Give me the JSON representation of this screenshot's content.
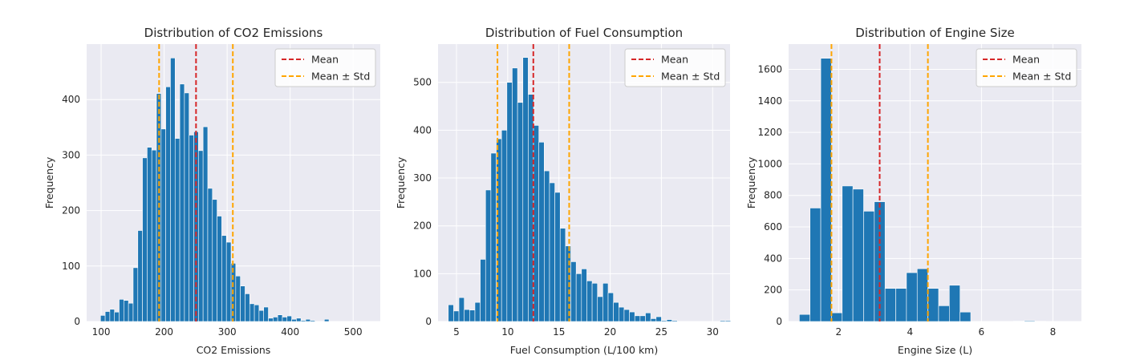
{
  "chart_data": [
    {
      "type": "bar",
      "title": "Distribution of CO2 Emissions",
      "xlabel": "CO2 Emissions",
      "ylabel": "Frequency",
      "xlim": [
        77,
        543
      ],
      "ylim": [
        0,
        500
      ],
      "xticks": [
        100,
        200,
        300,
        400,
        500
      ],
      "yticks": [
        0,
        100,
        200,
        300,
        400
      ],
      "bin_start": 99,
      "bin_width": 7.4,
      "values": [
        11,
        18,
        22,
        17,
        40,
        38,
        33,
        97,
        164,
        295,
        314,
        309,
        411,
        347,
        423,
        475,
        330,
        428,
        412,
        336,
        342,
        308,
        351,
        240,
        220,
        190,
        155,
        143,
        105,
        82,
        64,
        50,
        32,
        30,
        20,
        26,
        6,
        8,
        12,
        8,
        10,
        4,
        6,
        2,
        4,
        2,
        0,
        0,
        4
      ],
      "lines": [
        {
          "series": "mean",
          "x": 250.6
        },
        {
          "series": "std",
          "x": 192
        },
        {
          "series": "std",
          "x": 309
        }
      ],
      "legend": [
        "Mean",
        "Mean ± Std"
      ],
      "legend_position": "top-right",
      "grid": true
    },
    {
      "type": "bar",
      "title": "Distribution of Fuel Consumption",
      "xlabel": "Fuel Consumption (L/100 km)",
      "ylabel": "Frequency",
      "xlim": [
        3.2,
        31.7
      ],
      "ylim": [
        0,
        580
      ],
      "xticks": [
        5,
        10,
        15,
        20,
        25,
        30
      ],
      "yticks": [
        0,
        100,
        200,
        300,
        400,
        500
      ],
      "bin_start": 4.2,
      "bin_width": 0.52,
      "values": [
        35,
        22,
        50,
        25,
        24,
        40,
        130,
        275,
        352,
        382,
        400,
        500,
        530,
        458,
        552,
        475,
        410,
        375,
        315,
        290,
        270,
        195,
        158,
        125,
        100,
        110,
        85,
        80,
        52,
        80,
        60,
        40,
        30,
        25,
        20,
        12,
        12,
        18,
        6,
        10,
        2,
        4,
        2,
        0,
        0,
        0,
        0,
        0,
        0,
        0,
        0,
        2,
        2
      ],
      "lines": [
        {
          "series": "mean",
          "x": 12.5
        },
        {
          "series": "std",
          "x": 9.0
        },
        {
          "series": "std",
          "x": 16.0
        }
      ],
      "legend": [
        "Mean",
        "Mean ± Std"
      ],
      "legend_position": "top-right",
      "grid": true
    },
    {
      "type": "bar",
      "title": "Distribution of Engine Size",
      "xlabel": "Engine Size (L)",
      "ylabel": "Frequency",
      "xlim": [
        0.6,
        8.8
      ],
      "ylim": [
        0,
        1760
      ],
      "xticks": [
        2,
        4,
        6,
        8
      ],
      "yticks": [
        0,
        200,
        400,
        600,
        800,
        1000,
        1200,
        1400,
        1600
      ],
      "bin_start": 0.9,
      "bin_width": 0.3,
      "values": [
        45,
        720,
        1670,
        55,
        860,
        840,
        700,
        760,
        210,
        210,
        310,
        335,
        210,
        100,
        230,
        60,
        0,
        0,
        0,
        0,
        3,
        5,
        2
      ],
      "lines": [
        {
          "series": "mean",
          "x": 3.15
        },
        {
          "series": "std",
          "x": 1.8
        },
        {
          "series": "std",
          "x": 4.5
        }
      ],
      "legend": [
        "Mean",
        "Mean ± Std"
      ],
      "legend_position": "top-right",
      "grid": true
    }
  ],
  "colors": {
    "bar": "#1f77b4",
    "mean": "#d62728",
    "std": "#ffa500",
    "plot_bg": "#eaeaf2",
    "grid": "#ffffff",
    "text": "#262626"
  }
}
